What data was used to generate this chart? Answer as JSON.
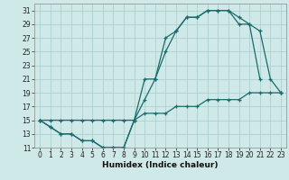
{
  "xlabel": "Humidex (Indice chaleur)",
  "background_color": "#cfe8e8",
  "grid_color": "#a8cccc",
  "line_color": "#1a6b6b",
  "x_hours": [
    0,
    1,
    2,
    3,
    4,
    5,
    6,
    7,
    8,
    9,
    10,
    11,
    12,
    13,
    14,
    15,
    16,
    17,
    18,
    19,
    20,
    21,
    22,
    23
  ],
  "line1_y": [
    15,
    14,
    13,
    13,
    12,
    12,
    11,
    11,
    11,
    15,
    18,
    21,
    25,
    28,
    30,
    30,
    31,
    31,
    31,
    30,
    29,
    21,
    null,
    19
  ],
  "line2_y": [
    15,
    14,
    13,
    13,
    12,
    12,
    11,
    11,
    11,
    15,
    21,
    21,
    27,
    28,
    30,
    30,
    31,
    31,
    31,
    29,
    29,
    28,
    21,
    19
  ],
  "line3_y": [
    15,
    15,
    15,
    15,
    15,
    15,
    15,
    15,
    15,
    15,
    16,
    16,
    16,
    17,
    17,
    17,
    18,
    18,
    18,
    18,
    19,
    19,
    19,
    19
  ],
  "xlim_min": -0.5,
  "xlim_max": 23.5,
  "ylim_min": 11,
  "ylim_max": 32,
  "yticks": [
    11,
    13,
    15,
    17,
    19,
    21,
    23,
    25,
    27,
    29,
    31
  ],
  "xticks": [
    0,
    1,
    2,
    3,
    4,
    5,
    6,
    7,
    8,
    9,
    10,
    11,
    12,
    13,
    14,
    15,
    16,
    17,
    18,
    19,
    20,
    21,
    22,
    23
  ],
  "tick_fontsize": 5.5,
  "xlabel_fontsize": 6.5,
  "marker_size": 3,
  "linewidth": 0.9
}
